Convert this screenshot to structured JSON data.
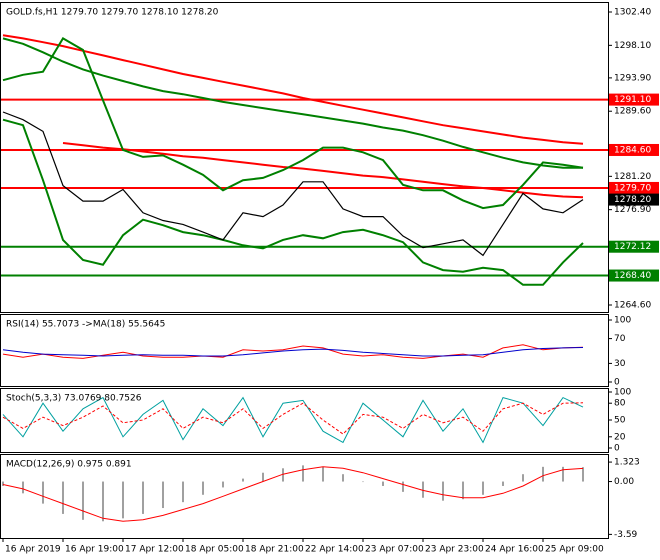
{
  "chart_data": [
    {
      "type": "line",
      "title": "GOLD.fs,H1 1279.70 1279.70 1278.10 1278.20",
      "ylim": [
        1264.6,
        1302.4
      ],
      "yticks": [
        {
          "value": 1302.4,
          "label": "1302.40"
        },
        {
          "value": 1298.1,
          "label": "1298.10"
        },
        {
          "value": 1293.9,
          "label": "1293.90"
        },
        {
          "value": 1289.6,
          "label": "1289.60"
        },
        {
          "value": 1281.2,
          "label": "1281.20"
        },
        {
          "value": 1276.9,
          "label": "1276.90"
        },
        {
          "value": 1264.6,
          "label": "1264.60"
        }
      ],
      "levels": [
        {
          "value": 1291.1,
          "label": "1291.10",
          "color": "#ff0000"
        },
        {
          "value": 1284.6,
          "label": "1284.60",
          "color": "#ff0000"
        },
        {
          "value": 1279.7,
          "label": "1279.70",
          "color": "#ff0000"
        },
        {
          "value": 1272.12,
          "label": "1272.12",
          "color": "#008000"
        },
        {
          "value": 1268.4,
          "label": "1268.40",
          "color": "#008000"
        }
      ],
      "last_price": {
        "value": 1278.2,
        "label": "1278.20",
        "color": "#000000"
      },
      "series": [
        {
          "color": "#ff0000",
          "width": 2,
          "values": [
            1299.4,
            1299.0,
            1298.5,
            1298.0,
            1297.4,
            1296.8,
            1296.2,
            1295.6,
            1295.0,
            1294.4,
            1293.9,
            1293.4,
            1292.9,
            1292.4,
            1291.9,
            1291.3,
            1290.8,
            1290.3,
            1289.8,
            1289.3,
            1288.8,
            1288.3,
            1287.8,
            1287.4,
            1287.0,
            1286.6,
            1286.2,
            1285.9,
            1285.6,
            1285.4
          ]
        },
        {
          "color": "#008000",
          "width": 2,
          "values": [
            1299.0,
            1298.3,
            1297.2,
            1296.0,
            1295.0,
            1294.2,
            1293.5,
            1292.8,
            1292.2,
            1291.8,
            1291.3,
            1290.8,
            1290.4,
            1290.0,
            1289.6,
            1289.2,
            1288.8,
            1288.4,
            1288.0,
            1287.5,
            1287.1,
            1286.5,
            1285.8,
            1285.0,
            1284.3,
            1283.6,
            1283.0,
            1282.6,
            1282.3,
            1282.3
          ]
        },
        {
          "color": "#ff0000",
          "width": 2,
          "values": [
            null,
            null,
            null,
            1285.5,
            1285.2,
            1284.9,
            1284.7,
            1284.4,
            1284.1,
            1283.8,
            1283.6,
            1283.3,
            1283.0,
            1282.7,
            1282.4,
            1282.2,
            1281.9,
            1281.6,
            1281.3,
            1281.1,
            1280.8,
            1280.5,
            1280.2,
            1279.9,
            1279.7,
            1279.4,
            1279.1,
            1278.8,
            1278.6,
            1278.5
          ]
        },
        {
          "color": "#008000",
          "width": 2,
          "values": [
            1293.6,
            1294.3,
            1294.7,
            1299.0,
            1297.5,
            1291.0,
            1284.6,
            1283.7,
            1283.9,
            1282.7,
            1281.4,
            1279.4,
            1280.7,
            1281.0,
            1282.0,
            1283.3,
            1284.9,
            1284.9,
            1284.3,
            1283.3,
            1280.1,
            1279.4,
            1279.4,
            1278.1,
            1277.1,
            1277.5,
            1280.1,
            1283.0,
            1282.7,
            1282.3
          ]
        },
        {
          "color": "#008000",
          "width": 2,
          "values": [
            1288.5,
            1287.8,
            1280.7,
            1273.0,
            1270.4,
            1269.8,
            1273.6,
            1275.6,
            1274.9,
            1274.0,
            1273.6,
            1273.0,
            1272.3,
            1271.9,
            1273.0,
            1273.6,
            1273.2,
            1274.0,
            1274.3,
            1273.6,
            1272.7,
            1270.1,
            1269.1,
            1268.9,
            1269.4,
            1269.1,
            1267.2,
            1267.2,
            1270.1,
            1272.6
          ]
        },
        {
          "color": "#000000",
          "width": 1.2,
          "values": [
            1289.5,
            1288.5,
            1287,
            1280,
            1278,
            1278,
            1279.5,
            1276.5,
            1275.5,
            1275,
            1274,
            1273,
            1276.5,
            1276,
            1277.5,
            1280.5,
            1280.5,
            1277,
            1276,
            1276,
            1273.5,
            1272,
            1272.5,
            1273,
            1271,
            1275,
            1279,
            1277,
            1276.5,
            1278.2
          ]
        }
      ]
    },
    {
      "type": "line",
      "title": "RSI(14) 55.7073 ->MA(18) 55.5645",
      "ylim": [
        0,
        100
      ],
      "yticks": [
        100,
        70,
        30,
        0
      ],
      "series": [
        {
          "color": "#ff0000",
          "width": 1,
          "values": [
            45,
            40,
            45,
            40,
            38,
            43,
            48,
            42,
            40,
            40,
            42,
            40,
            52,
            50,
            52,
            58,
            55,
            45,
            42,
            44,
            40,
            38,
            42,
            45,
            40,
            55,
            60,
            52,
            55,
            56
          ]
        },
        {
          "color": "#0000cc",
          "width": 1,
          "values": [
            52,
            48,
            45,
            44,
            43,
            42,
            43,
            44,
            43,
            43,
            42,
            42,
            44,
            47,
            50,
            52,
            53,
            51,
            48,
            46,
            44,
            42,
            42,
            43,
            44,
            48,
            52,
            54,
            55,
            55.6
          ]
        }
      ]
    },
    {
      "type": "line",
      "title": "Stoch(5,3,3) 73.0769 80.7526",
      "ylim": [
        0,
        100
      ],
      "yticks": [
        100,
        80,
        50,
        20,
        0
      ],
      "series": [
        {
          "color": "#00a0a0",
          "width": 1,
          "values": [
            60,
            20,
            80,
            30,
            70,
            90,
            20,
            60,
            85,
            15,
            70,
            40,
            90,
            20,
            80,
            85,
            30,
            10,
            80,
            50,
            20,
            85,
            30,
            70,
            10,
            90,
            80,
            40,
            90,
            73.1
          ]
        },
        {
          "color": "#ff0000",
          "width": 1,
          "dash": true,
          "values": [
            55,
            35,
            55,
            40,
            55,
            75,
            45,
            50,
            70,
            35,
            55,
            45,
            70,
            35,
            60,
            80,
            50,
            25,
            60,
            55,
            35,
            60,
            45,
            55,
            30,
            70,
            80,
            60,
            80,
            80.8
          ]
        }
      ]
    },
    {
      "type": "line",
      "title": "MACD(12,26,9) 0.975 0.891",
      "ylim": [
        -3.7,
        1.6
      ],
      "yticks": [
        1.323,
        {
          "value": 0,
          "label": "0.00"
        },
        -3.59
      ],
      "categories": [
        "16 Apr 2019",
        null,
        null,
        "16 Apr 19:00",
        null,
        null,
        "17 Apr 12:00",
        null,
        null,
        "18 Apr 05:00",
        null,
        null,
        "18 Apr 21:00",
        null,
        null,
        "22 Apr 14:00",
        null,
        null,
        "23 Apr 07:00",
        null,
        null,
        "23 Apr 23:00",
        null,
        null,
        "24 Apr 16:00",
        null,
        null,
        "25 Apr 09:00",
        null,
        null
      ],
      "series": [
        {
          "type": "bar",
          "color": "#a0a0a0",
          "values": [
            -0.3,
            -0.8,
            -1.5,
            -2.2,
            -2.6,
            -2.7,
            -2.5,
            -2.2,
            -1.8,
            -1.4,
            -0.9,
            -0.4,
            0.2,
            0.6,
            0.9,
            1.1,
            1.0,
            0.5,
            0.0,
            -0.3,
            -0.7,
            -1.1,
            -1.3,
            -1.2,
            -0.9,
            -0.3,
            0.5,
            1.0,
            1.0,
            0.975
          ]
        },
        {
          "color": "#ff0000",
          "width": 1,
          "values": [
            -0.2,
            -0.5,
            -1.0,
            -1.5,
            -2.0,
            -2.5,
            -2.7,
            -2.6,
            -2.3,
            -1.9,
            -1.5,
            -1.0,
            -0.5,
            0.0,
            0.5,
            0.8,
            1.0,
            0.9,
            0.6,
            0.2,
            -0.2,
            -0.6,
            -0.9,
            -1.1,
            -1.1,
            -0.8,
            -0.3,
            0.4,
            0.8,
            0.891
          ]
        }
      ]
    }
  ]
}
